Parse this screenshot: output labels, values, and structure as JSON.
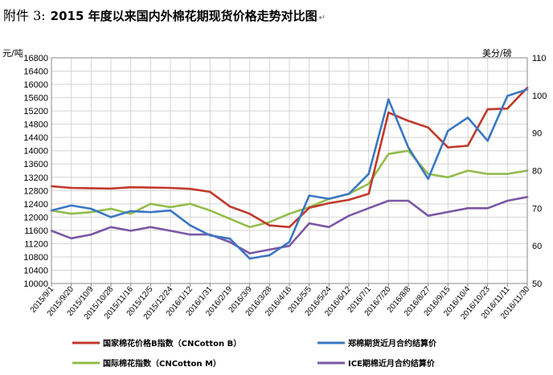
{
  "title": {
    "prefix": "附件 3:",
    "text": "2015 年度以来国内外棉花期现货价格走势对比图",
    "mark": "↵"
  },
  "chart_data": {
    "type": "line",
    "left_axis": {
      "unit": "元/吨",
      "ylim": [
        10000,
        16800
      ],
      "ticks": [
        10000,
        10400,
        10800,
        11200,
        11600,
        12000,
        12400,
        12800,
        13200,
        13600,
        14000,
        14400,
        14800,
        15200,
        15600,
        16000,
        16400,
        16800
      ]
    },
    "right_axis": {
      "unit": "美分/磅",
      "ylim": [
        50,
        110
      ],
      "ticks": [
        50,
        60,
        70,
        80,
        90,
        100,
        110
      ]
    },
    "grid": true,
    "x_categories": [
      "2015/9/1",
      "2015/9/20",
      "2015/10/9",
      "2015/10/28",
      "2015/11/16",
      "2015/12/5",
      "2015/12/24",
      "2016/1/12",
      "2016/1/31",
      "2016/2/19",
      "2016/3/9",
      "2016/3/28",
      "2016/4/16",
      "2016/5/5",
      "2016/5/24",
      "2016/6/12",
      "2016/7/1",
      "2016/7/20",
      "2016/8/8",
      "2016/8/27",
      "2016/9/15",
      "2016/10/4",
      "2016/10/23",
      "2016/11/11",
      "2016/11/30"
    ],
    "legend_position": "bottom",
    "series": [
      {
        "name": "国家棉花价格B指数（CNCotton B）",
        "axis": "left",
        "color": "#C0392B",
        "values": [
          12930,
          12880,
          12870,
          12860,
          12900,
          12890,
          12880,
          12850,
          12760,
          12320,
          12100,
          11750,
          11700,
          12280,
          12420,
          12520,
          12700,
          15150,
          14900,
          14700,
          14100,
          14150,
          15250,
          15270,
          15900
        ]
      },
      {
        "name": "郑棉期货近月合约结算价",
        "axis": "left",
        "color": "#3A77C2",
        "values": [
          12200,
          12350,
          12250,
          12000,
          12180,
          12150,
          12200,
          11750,
          11450,
          11350,
          10750,
          10850,
          11250,
          12650,
          12550,
          12700,
          13300,
          15550,
          14100,
          13150,
          14600,
          15000,
          14300,
          15650,
          15850
        ]
      },
      {
        "name": "国际棉花指数（CNCotton M）",
        "axis": "left",
        "color": "#92BC4B",
        "values": [
          12200,
          12100,
          12150,
          12250,
          12100,
          12400,
          12300,
          12400,
          12200,
          11950,
          11700,
          11850,
          12100,
          12300,
          12550,
          12700,
          13000,
          13900,
          14000,
          13300,
          13200,
          13400,
          13300,
          13300,
          13400
        ]
      },
      {
        "name": "ICE期棉近月合约结算价",
        "axis": "right",
        "color": "#7B57A4",
        "values": [
          64,
          62,
          63,
          65,
          64,
          65,
          64,
          63,
          63,
          61,
          58,
          59,
          60,
          66,
          65,
          68,
          70,
          72,
          72,
          68,
          69,
          70,
          70,
          72,
          73
        ]
      }
    ]
  }
}
